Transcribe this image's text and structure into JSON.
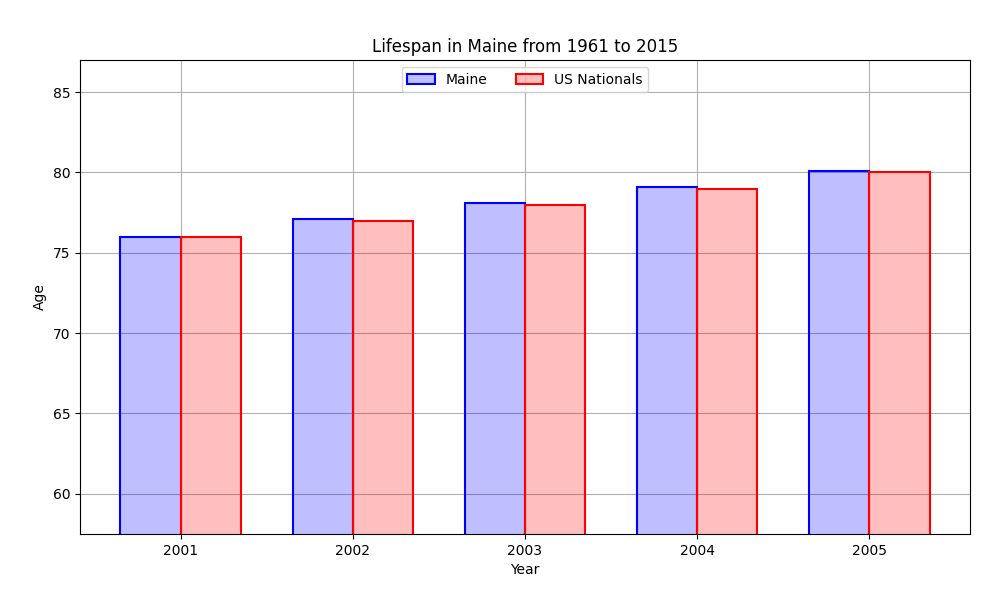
{
  "chart_data": {
    "type": "bar",
    "title": "Lifespan in Maine from 1961 to 2015",
    "x_label": "Year",
    "y_label": "Age",
    "categories": [
      "2001",
      "2002",
      "2003",
      "2004",
      "2005"
    ],
    "series": [
      {
        "name": "Maine",
        "color": "#0000ff",
        "values": [
          76.0,
          77.1,
          78.1,
          79.1,
          80.1
        ]
      },
      {
        "name": "US Nationals",
        "color": "#ff0000",
        "values": [
          76.0,
          77.0,
          78.0,
          79.0,
          80.0
        ]
      }
    ],
    "ylim": [
      57.5,
      87
    ],
    "yticks": [
      60,
      65,
      70,
      75,
      80,
      85
    ],
    "grid": true,
    "legend": "upper center"
  }
}
